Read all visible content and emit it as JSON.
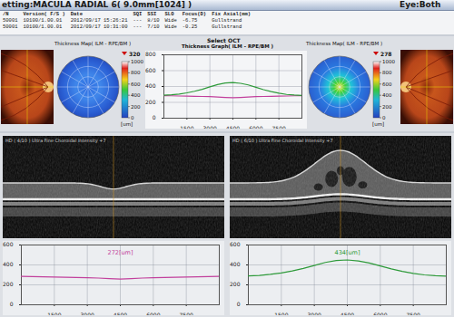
{
  "header": {
    "setting": "etting:MACULA RADIAL 6( 9.0mm[1024] )",
    "eye": "Eye:Both"
  },
  "table": {
    "columns": [
      "/N",
      "Version( F/S )",
      "Date",
      "SQI",
      "SSI",
      "SLO",
      "Focus(D)",
      "Fix Axial(mm)"
    ],
    "rows": [
      [
        "50001",
        "10100/1.00.01",
        "2012/09/17 15:26:21",
        "---",
        "8/10",
        "Wide",
        "-6.75",
        "Gullstrand"
      ],
      [
        "50001",
        "10100/1.00.01",
        "2012/09/17 10:31:00",
        "---",
        "7/10",
        "Wide",
        "-0.25",
        "Gullstrand"
      ]
    ]
  },
  "thickness_maps": [
    {
      "title": "Thickness Map( ILM - RPE/BM )",
      "value": 320,
      "colorbar": {
        "ticks": [
          0,
          200,
          400,
          600,
          800,
          1000
        ],
        "unit": "[um]"
      }
    },
    {
      "title": "Thickness Map( ILM - RPE/BM )",
      "value": 278,
      "colorbar": {
        "ticks": [
          0,
          200,
          400,
          600,
          800,
          1000
        ],
        "unit": "[um]"
      }
    }
  ],
  "select_label": "Select OCT",
  "bscans": [
    {
      "label": "HD ( 4/10 ) Ultra Fine Choroidal Intensity +7"
    },
    {
      "label": "HD ( 6/10 ) Ultra Fine Choroidal Intensity +7"
    }
  ],
  "chart_data": [
    {
      "type": "line",
      "title": "Thickness Graph( ILM - RPE/BM )",
      "x": [
        0,
        500,
        1000,
        1500,
        2000,
        2500,
        3000,
        3500,
        4000,
        4500,
        5000,
        5500,
        6000,
        6500,
        7000,
        7500,
        8000,
        8500,
        9000
      ],
      "series": [
        {
          "color": "#c2409c",
          "values": [
            285,
            283,
            280,
            278,
            276,
            274,
            272,
            268,
            262,
            258,
            262,
            268,
            272,
            274,
            276,
            278,
            280,
            283,
            285
          ]
        },
        {
          "color": "#2e9a3a",
          "values": [
            290,
            295,
            305,
            320,
            340,
            365,
            395,
            425,
            445,
            450,
            440,
            420,
            390,
            360,
            335,
            315,
            300,
            292,
            288
          ]
        }
      ],
      "xlim": [
        0,
        9000
      ],
      "xticks": [
        1500,
        3000,
        4500,
        6000,
        7500
      ],
      "ylim": [
        0,
        800
      ],
      "yticks": [
        0,
        200,
        400,
        600,
        800
      ],
      "grid": true
    },
    {
      "type": "line",
      "x": [
        0,
        500,
        1000,
        1500,
        2000,
        2500,
        3000,
        3500,
        4000,
        4500,
        5000,
        5500,
        6000,
        6500,
        7000,
        7500,
        8000,
        8500,
        9000
      ],
      "series": [
        {
          "color": "#c2409c",
          "values": [
            285,
            283,
            280,
            278,
            276,
            274,
            272,
            268,
            262,
            258,
            262,
            268,
            272,
            274,
            276,
            278,
            280,
            283,
            285
          ]
        }
      ],
      "annotations": [
        "272[um]"
      ],
      "xlim": [
        0,
        9000
      ],
      "xticks": [
        1500,
        3000,
        4500,
        6000,
        7500
      ],
      "ylim": [
        0,
        600
      ],
      "yticks": [
        0,
        200,
        400,
        600
      ],
      "grid": true
    },
    {
      "type": "line",
      "x": [
        0,
        500,
        1000,
        1500,
        2000,
        2500,
        3000,
        3500,
        4000,
        4500,
        5000,
        5500,
        6000,
        6500,
        7000,
        7500,
        8000,
        8500,
        9000
      ],
      "series": [
        {
          "color": "#2e9a3a",
          "values": [
            290,
            295,
            305,
            320,
            340,
            365,
            395,
            425,
            445,
            450,
            440,
            420,
            390,
            360,
            335,
            315,
            300,
            292,
            288
          ]
        }
      ],
      "annotations": [
        "434[um]"
      ],
      "xlim": [
        0,
        9000
      ],
      "xticks": [
        1500,
        3000,
        4500,
        6000,
        7500
      ],
      "ylim": [
        0,
        600
      ],
      "yticks": [
        0,
        200,
        400,
        600
      ],
      "grid": true
    }
  ]
}
